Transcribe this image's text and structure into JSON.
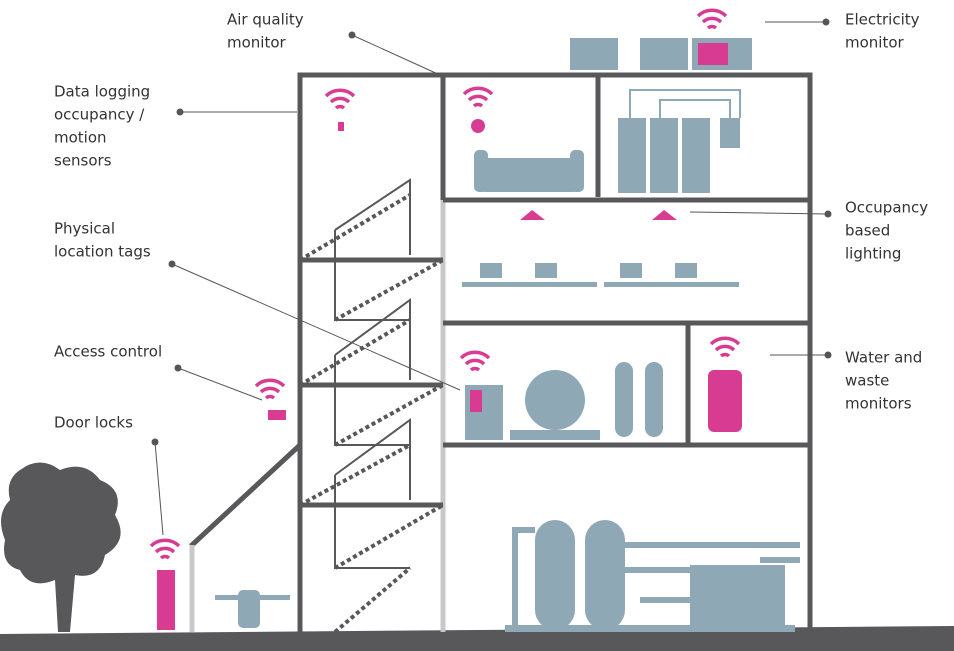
{
  "labels": [
    {
      "lines": [
        "Air quality",
        "monitor"
      ]
    },
    {
      "lines": [
        "Electricity",
        "monitor"
      ]
    },
    {
      "lines": [
        "Data logging",
        "occupancy /",
        "motion",
        "sensors"
      ]
    },
    {
      "lines": [
        "Physical",
        "location tags"
      ]
    },
    {
      "lines": [
        "Occupancy",
        "based",
        "lighting"
      ]
    },
    {
      "lines": [
        "Access control"
      ]
    },
    {
      "lines": [
        "Water and",
        "waste",
        "monitors"
      ]
    },
    {
      "lines": [
        "Door locks"
      ]
    }
  ]
}
